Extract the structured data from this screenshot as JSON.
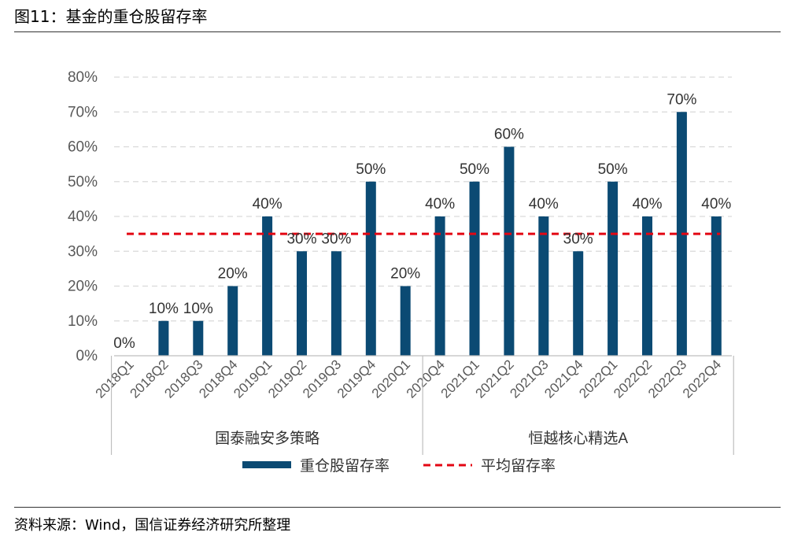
{
  "header": {
    "title": "图11：基金的重仓股留存率"
  },
  "footer": {
    "source": "资料来源：Wind，国信证券经济研究所整理"
  },
  "colors": {
    "bar": "#0b4a73",
    "average_line": "#e30613",
    "grid": "#d9d9d9",
    "axis_text": "#595959"
  },
  "chart_data": {
    "type": "bar",
    "categories": [
      "2018Q1",
      "2018Q2",
      "2018Q3",
      "2018Q4",
      "2019Q1",
      "2019Q2",
      "2019Q3",
      "2019Q4",
      "2020Q1",
      "2020Q4",
      "2021Q1",
      "2021Q2",
      "2021Q3",
      "2021Q4",
      "2022Q1",
      "2022Q2",
      "2022Q3",
      "2022Q4"
    ],
    "groups": [
      {
        "name": "国泰融安多策略",
        "start": 0,
        "end": 8
      },
      {
        "name": "恒越核心精选A",
        "start": 9,
        "end": 17
      }
    ],
    "series": [
      {
        "name": "重仓股留存率",
        "kind": "bar",
        "values": [
          0,
          10,
          10,
          20,
          40,
          30,
          30,
          50,
          20,
          40,
          50,
          60,
          40,
          30,
          50,
          40,
          70,
          40
        ],
        "labels": [
          "0%",
          "10%",
          "10%",
          "20%",
          "40%",
          "30%",
          "30%",
          "50%",
          "20%",
          "40%",
          "50%",
          "60%",
          "40%",
          "30%",
          "50%",
          "40%",
          "70%",
          "40%"
        ]
      },
      {
        "name": "平均留存率",
        "kind": "line-dashed",
        "value": 35
      }
    ],
    "y_ticks": [
      "0%",
      "10%",
      "20%",
      "30%",
      "40%",
      "50%",
      "60%",
      "70%",
      "80%"
    ],
    "ylim": [
      0,
      80
    ],
    "grid": true,
    "legend_position": "bottom"
  }
}
